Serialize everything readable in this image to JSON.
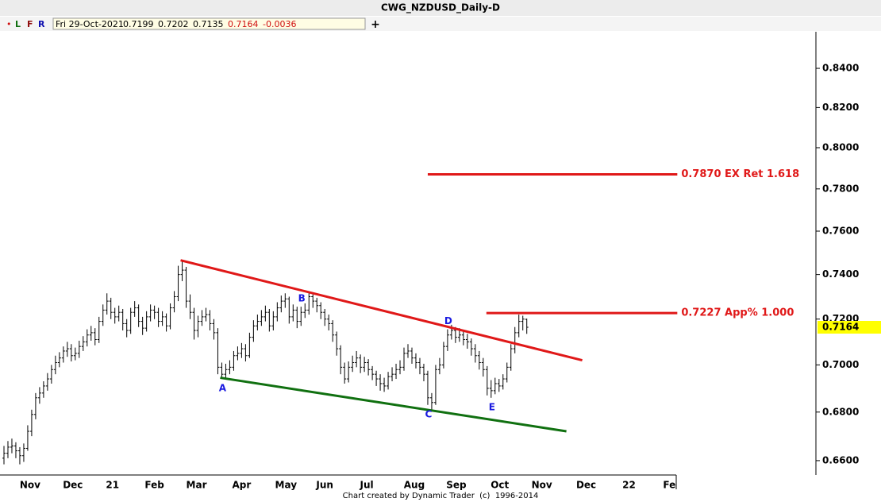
{
  "header": {
    "buttons": [
      "•",
      "L",
      "F",
      "R"
    ],
    "date": "Fri 29-Oct-2021",
    "change": -0.0036
  },
  "footer": "Chart created by Dynamic Trader  (c)  1996-2014",
  "chart_data": {
    "type": "ohlc",
    "title": "CWG_NZDUSD_Daily-D",
    "log": true,
    "color": "#000000",
    "open": [
      0.661,
      0.663,
      0.6655,
      0.666,
      0.664,
      0.662,
      0.665,
      0.672,
      0.679,
      0.686,
      0.688,
      0.691,
      0.694,
      0.698,
      0.701,
      0.703,
      0.706,
      0.707,
      0.704,
      0.705,
      0.708,
      0.71,
      0.713,
      0.714,
      0.711,
      0.719,
      0.724,
      0.728,
      0.723,
      0.721,
      0.723,
      0.718,
      0.715,
      0.723,
      0.725,
      0.719,
      0.716,
      0.721,
      0.724,
      0.723,
      0.719,
      0.721,
      0.717,
      0.725,
      0.73,
      0.74,
      0.742,
      0.728,
      0.723,
      0.715,
      0.719,
      0.721,
      0.722,
      0.718,
      0.714,
      0.699,
      0.696,
      0.698,
      0.699,
      0.704,
      0.705,
      0.707,
      0.704,
      0.712,
      0.717,
      0.719,
      0.721,
      0.723,
      0.717,
      0.721,
      0.725,
      0.728,
      0.729,
      0.721,
      0.724,
      0.719,
      0.723,
      0.724,
      0.73,
      0.728,
      0.726,
      0.723,
      0.72,
      0.718,
      0.713,
      0.707,
      0.699,
      0.694,
      0.699,
      0.701,
      0.703,
      0.699,
      0.701,
      0.698,
      0.696,
      0.694,
      0.692,
      0.691,
      0.695,
      0.696,
      0.698,
      0.699,
      0.705,
      0.706,
      0.703,
      0.701,
      0.699,
      0.696,
      0.686,
      0.684,
      0.698,
      0.7,
      0.708,
      0.713,
      0.715,
      0.712,
      0.713,
      0.711,
      0.71,
      0.707,
      0.704,
      0.701,
      0.698,
      0.69,
      0.689,
      0.692,
      0.691,
      0.694,
      0.699,
      0.707,
      0.714,
      0.719,
      0.7199
    ],
    "high": [
      0.666,
      0.668,
      0.669,
      0.6675,
      0.6655,
      0.667,
      0.6745,
      0.681,
      0.688,
      0.6905,
      0.693,
      0.6965,
      0.7,
      0.704,
      0.7055,
      0.708,
      0.71,
      0.709,
      0.7075,
      0.7105,
      0.7125,
      0.7155,
      0.717,
      0.716,
      0.721,
      0.7265,
      0.7315,
      0.7295,
      0.725,
      0.726,
      0.7245,
      0.72,
      0.725,
      0.728,
      0.7265,
      0.721,
      0.7235,
      0.7265,
      0.726,
      0.725,
      0.7235,
      0.7225,
      0.727,
      0.7325,
      0.744,
      0.7465,
      0.7435,
      0.731,
      0.725,
      0.7215,
      0.724,
      0.725,
      0.724,
      0.72,
      0.716,
      0.701,
      0.7005,
      0.702,
      0.706,
      0.708,
      0.7095,
      0.709,
      0.714,
      0.7195,
      0.722,
      0.724,
      0.726,
      0.7245,
      0.7235,
      0.7275,
      0.7305,
      0.7315,
      0.73,
      0.7265,
      0.7255,
      0.7255,
      0.727,
      0.7315,
      0.731,
      0.7295,
      0.7275,
      0.7245,
      0.722,
      0.7195,
      0.7145,
      0.7085,
      0.701,
      0.7015,
      0.704,
      0.706,
      0.7045,
      0.7035,
      0.7025,
      0.6995,
      0.6975,
      0.696,
      0.6945,
      0.697,
      0.699,
      0.7005,
      0.702,
      0.7075,
      0.709,
      0.7075,
      0.705,
      0.703,
      0.7005,
      0.6975,
      0.688,
      0.7,
      0.703,
      0.71,
      0.7155,
      0.7175,
      0.7165,
      0.716,
      0.715,
      0.7135,
      0.7115,
      0.709,
      0.706,
      0.703,
      0.6995,
      0.6935,
      0.6945,
      0.694,
      0.696,
      0.701,
      0.709,
      0.7165,
      0.722,
      0.7215,
      0.7202
    ],
    "low": [
      0.6585,
      0.661,
      0.663,
      0.661,
      0.6585,
      0.6595,
      0.664,
      0.67,
      0.677,
      0.6835,
      0.686,
      0.689,
      0.692,
      0.696,
      0.699,
      0.701,
      0.7035,
      0.7015,
      0.702,
      0.703,
      0.706,
      0.708,
      0.7105,
      0.7085,
      0.7095,
      0.717,
      0.722,
      0.72,
      0.718,
      0.719,
      0.715,
      0.712,
      0.7135,
      0.721,
      0.7165,
      0.713,
      0.7145,
      0.719,
      0.72,
      0.7165,
      0.717,
      0.7145,
      0.7155,
      0.723,
      0.728,
      0.737,
      0.725,
      0.72,
      0.711,
      0.712,
      0.717,
      0.719,
      0.715,
      0.711,
      0.696,
      0.694,
      0.6945,
      0.696,
      0.6975,
      0.702,
      0.703,
      0.7015,
      0.703,
      0.71,
      0.715,
      0.717,
      0.719,
      0.7145,
      0.715,
      0.719,
      0.723,
      0.725,
      0.718,
      0.719,
      0.716,
      0.717,
      0.7205,
      0.722,
      0.725,
      0.723,
      0.72,
      0.717,
      0.715,
      0.71,
      0.704,
      0.696,
      0.692,
      0.6925,
      0.697,
      0.699,
      0.6965,
      0.697,
      0.6955,
      0.6935,
      0.691,
      0.689,
      0.6885,
      0.6895,
      0.693,
      0.694,
      0.696,
      0.6975,
      0.703,
      0.7005,
      0.6985,
      0.696,
      0.693,
      0.683,
      0.681,
      0.683,
      0.696,
      0.6985,
      0.706,
      0.711,
      0.7095,
      0.71,
      0.7085,
      0.707,
      0.704,
      0.701,
      0.698,
      0.695,
      0.687,
      0.686,
      0.6875,
      0.6885,
      0.6895,
      0.6925,
      0.6975,
      0.705,
      0.712,
      0.715,
      0.7135
    ],
    "close": [
      0.663,
      0.6655,
      0.666,
      0.664,
      0.662,
      0.665,
      0.672,
      0.679,
      0.686,
      0.688,
      0.691,
      0.694,
      0.698,
      0.701,
      0.703,
      0.706,
      0.707,
      0.704,
      0.705,
      0.708,
      0.71,
      0.713,
      0.714,
      0.711,
      0.719,
      0.724,
      0.728,
      0.723,
      0.721,
      0.723,
      0.718,
      0.715,
      0.723,
      0.725,
      0.719,
      0.716,
      0.721,
      0.724,
      0.723,
      0.719,
      0.721,
      0.717,
      0.725,
      0.73,
      0.74,
      0.742,
      0.728,
      0.723,
      0.715,
      0.719,
      0.721,
      0.722,
      0.718,
      0.714,
      0.699,
      0.696,
      0.698,
      0.699,
      0.704,
      0.705,
      0.707,
      0.704,
      0.712,
      0.717,
      0.719,
      0.721,
      0.723,
      0.717,
      0.721,
      0.725,
      0.728,
      0.729,
      0.721,
      0.724,
      0.719,
      0.723,
      0.724,
      0.73,
      0.728,
      0.726,
      0.723,
      0.72,
      0.718,
      0.713,
      0.707,
      0.699,
      0.694,
      0.699,
      0.701,
      0.703,
      0.699,
      0.701,
      0.698,
      0.696,
      0.694,
      0.692,
      0.691,
      0.695,
      0.696,
      0.698,
      0.699,
      0.705,
      0.706,
      0.703,
      0.701,
      0.699,
      0.696,
      0.686,
      0.684,
      0.698,
      0.7,
      0.708,
      0.713,
      0.715,
      0.712,
      0.713,
      0.711,
      0.71,
      0.707,
      0.704,
      0.701,
      0.698,
      0.69,
      0.689,
      0.692,
      0.691,
      0.694,
      0.699,
      0.707,
      0.714,
      0.719,
      0.72,
      0.7164
    ],
    "xlim": [
      -1,
      205
    ],
    "xticks": [
      {
        "value": 6.6,
        "label": "Nov"
      },
      {
        "value": 17.4,
        "label": "Dec"
      },
      {
        "value": 27.4,
        "label": "21"
      },
      {
        "value": 38,
        "label": "Feb"
      },
      {
        "value": 48.6,
        "label": "Mar"
      },
      {
        "value": 60,
        "label": "Apr"
      },
      {
        "value": 71.2,
        "label": "May"
      },
      {
        "value": 81,
        "label": "Jun"
      },
      {
        "value": 91.6,
        "label": "Jul"
      },
      {
        "value": 103.6,
        "label": "Aug"
      },
      {
        "value": 114.2,
        "label": "Sep"
      },
      {
        "value": 125.2,
        "label": "Oct"
      },
      {
        "value": 135.8,
        "label": "Nov"
      },
      {
        "value": 147,
        "label": "Dec"
      },
      {
        "value": 157.8,
        "label": "22"
      },
      {
        "value": 168,
        "label": "Fe"
      }
    ],
    "ylim": [
      0.6542,
      0.8591
    ],
    "yticks": [
      {
        "value": 0.66,
        "label": "0.6600"
      },
      {
        "value": 0.68,
        "label": "0.6800"
      },
      {
        "value": 0.7,
        "label": "0.7000"
      },
      {
        "value": 0.72,
        "label": "0.7200"
      },
      {
        "value": 0.74,
        "label": "0.7400"
      },
      {
        "value": 0.76,
        "label": "0.7600"
      },
      {
        "value": 0.78,
        "label": "0.7800"
      },
      {
        "value": 0.8,
        "label": "0.8000"
      },
      {
        "value": 0.82,
        "label": "0.8200"
      },
      {
        "value": 0.84,
        "label": "0.8400"
      }
    ],
    "trendlines": [
      {
        "color": "#e01818",
        "x": [
          44.6,
          146
        ],
        "y": [
          0.7465,
          0.702
        ]
      },
      {
        "color": "#107010",
        "x": [
          54.6,
          142
        ],
        "y": [
          0.6945,
          0.672
        ]
      }
    ],
    "levels": [
      {
        "value": 0.787,
        "label": "0.7870 EX Ret 1.618",
        "x": [
          107,
          170
        ],
        "color": "#e01818"
      },
      {
        "value": 0.7227,
        "label": "0.7227 App% 1.000",
        "x": [
          121.8,
          170
        ],
        "color": "#e01818"
      }
    ],
    "wave_labels": [
      {
        "label": "A",
        "bar": 55,
        "at": "low"
      },
      {
        "label": "B",
        "bar": 75,
        "at": "high"
      },
      {
        "label": "C",
        "bar": 107,
        "at": "low"
      },
      {
        "label": "D",
        "bar": 112,
        "at": "high"
      },
      {
        "label": "E",
        "bar": 123,
        "at": "low"
      }
    ],
    "wave_color": "#1a1ae0",
    "price_box_color": "#ffff00"
  }
}
